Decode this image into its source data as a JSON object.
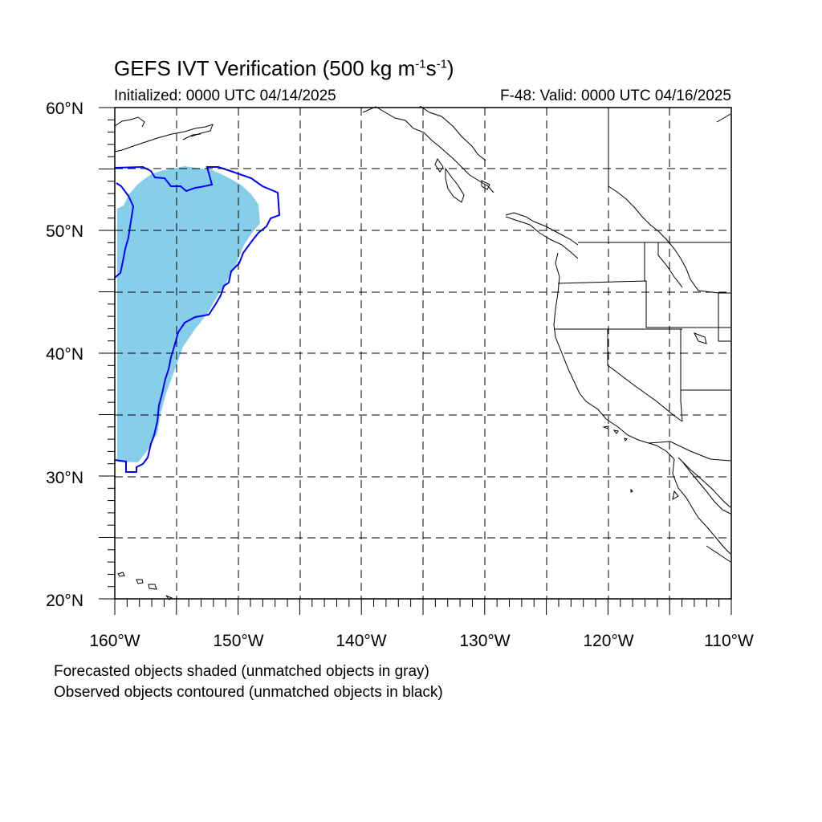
{
  "title": {
    "prefix": "GEFS IVT Verification (500 kg m",
    "exp1": "-1",
    "mid": "s",
    "exp2": "-1",
    "suffix": ")"
  },
  "initialized": "Initialized: 0000 UTC 04/14/2025",
  "valid": "F-48: Valid: 0000 UTC 04/16/2025",
  "lat_labels": [
    "60°N",
    "50°N",
    "40°N",
    "30°N",
    "20°N"
  ],
  "lon_labels": [
    "160°W",
    "150°W",
    "140°W",
    "130°W",
    "120°W",
    "110°W"
  ],
  "notes": [
    "Forecasted objects shaded (unmatched objects in gray)",
    "Observed objects contoured (unmatched objects in black)"
  ],
  "map_extent": {
    "lon_min": -160,
    "lon_max": -110,
    "lat_min": 20,
    "lat_max": 60
  },
  "colors": {
    "forecast_fill": "#87ceeb",
    "observed_contour": "#0000ff",
    "coastline": "#000000",
    "grid": "#000000"
  },
  "legend_forecast": "Forecasted objects shaded",
  "legend_observed": "Observed objects contoured"
}
